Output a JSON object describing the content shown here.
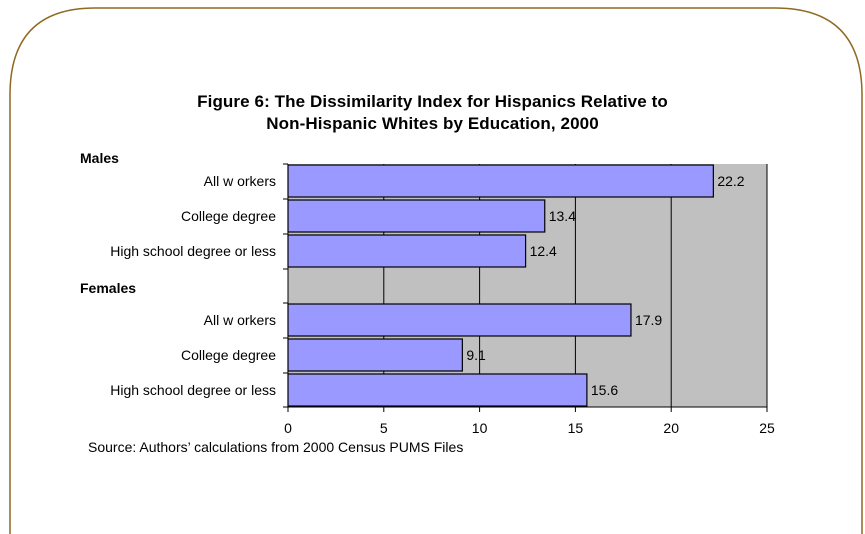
{
  "colors": {
    "frame": "#8f6a21",
    "plot_bg": "#c0c0c0",
    "bar_fill": "#9999ff",
    "bar_stroke": "#000000",
    "grid": "#000000"
  },
  "chart_data": {
    "type": "bar",
    "orientation": "horizontal",
    "title_lines": [
      "Figure 6: The Dissimilarity Index for Hispanics Relative to",
      "Non-Hispanic Whites by Education, 2000"
    ],
    "groups": [
      "Males",
      "Females"
    ],
    "categories": [
      "All w orkers",
      "College degree",
      "High school degree or less",
      "All w orkers",
      "College degree",
      "High school degree or less"
    ],
    "values": [
      22.2,
      13.4,
      12.4,
      17.9,
      9.1,
      15.6
    ],
    "xlim": [
      0,
      25
    ],
    "xticks": [
      0,
      5,
      10,
      15,
      20,
      25
    ],
    "xlabel": "",
    "ylabel": "",
    "grid": "vertical",
    "source": "Source: Authors’ calculations from 2000 Census PUMS Files"
  }
}
